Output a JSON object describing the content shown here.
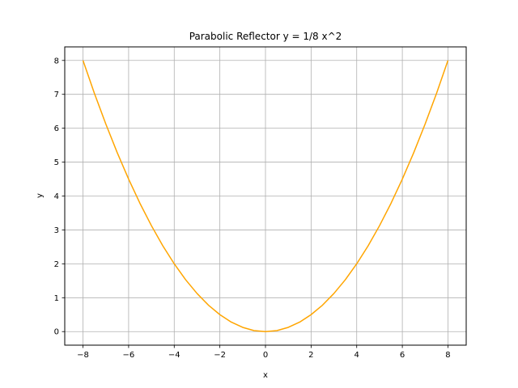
{
  "chart_data": {
    "type": "line",
    "title": "Parabolic Reflector y = 1/8 x^2",
    "xlabel": "x",
    "ylabel": "y",
    "xlim": [
      -8.8,
      8.8
    ],
    "ylim": [
      -0.4,
      8.4
    ],
    "xticks": [
      -8,
      -6,
      -4,
      -2,
      0,
      2,
      4,
      6,
      8
    ],
    "xtick_labels": [
      "−8",
      "−6",
      "−4",
      "−2",
      "0",
      "2",
      "4",
      "6",
      "8"
    ],
    "yticks": [
      0,
      1,
      2,
      3,
      4,
      5,
      6,
      7,
      8
    ],
    "ytick_labels": [
      "0",
      "1",
      "2",
      "3",
      "4",
      "5",
      "6",
      "7",
      "8"
    ],
    "grid": true,
    "series": [
      {
        "color": "#ffa500",
        "x": [
          -8,
          -7.5,
          -7,
          -6.5,
          -6,
          -5.5,
          -5,
          -4.5,
          -4,
          -3.5,
          -3,
          -2.5,
          -2,
          -1.5,
          -1,
          -0.5,
          0,
          0.5,
          1,
          1.5,
          2,
          2.5,
          3,
          3.5,
          4,
          4.5,
          5,
          5.5,
          6,
          6.5,
          7,
          7.5,
          8
        ],
        "y": [
          8,
          7.03,
          6.125,
          5.28,
          4.5,
          3.78,
          3.125,
          2.53,
          2,
          1.53,
          1.125,
          0.78,
          0.5,
          0.28,
          0.125,
          0.03,
          0,
          0.03,
          0.125,
          0.28,
          0.5,
          0.78,
          1.125,
          1.53,
          2,
          2.53,
          3.125,
          3.78,
          4.5,
          5.28,
          6.125,
          7.03,
          8
        ]
      }
    ]
  }
}
